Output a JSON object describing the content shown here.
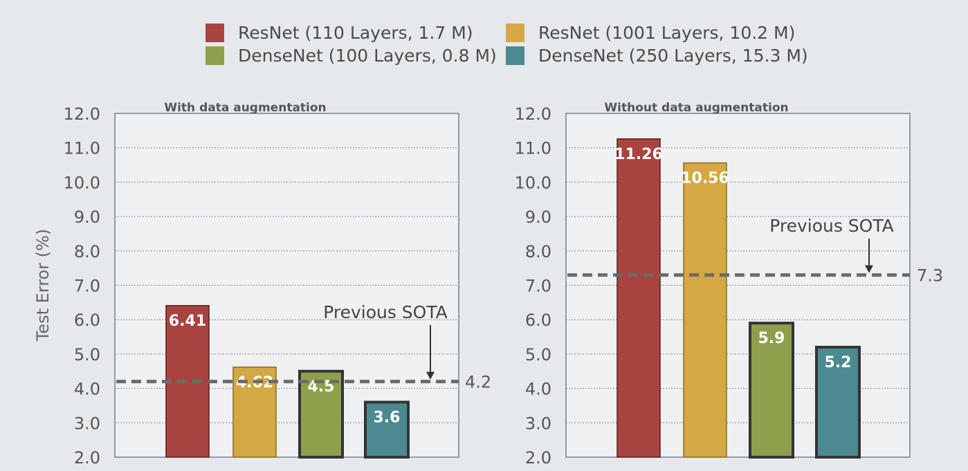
{
  "chart_data": {
    "type": "bar",
    "ylabel": "Test Error (%)",
    "ylim": [
      2.0,
      12.0
    ],
    "yticks": [
      "12.0",
      "11.0",
      "10.0",
      "9.0",
      "8.0",
      "7.0",
      "6.0",
      "5.0",
      "4.0",
      "3.0",
      "2.0"
    ],
    "grid": true,
    "legend_position": "top",
    "series": [
      {
        "name": "ResNet (110 Layers, 1.7 M)",
        "color": "#a8433f",
        "border": "#5a1f1c"
      },
      {
        "name": "ResNet (1001 Layers, 10.2 M)",
        "color": "#d4a842",
        "border": "#8a6a20"
      },
      {
        "name": "DenseNet (100 Layers, 0.8 M)",
        "color": "#8fa04c",
        "border": "#333333"
      },
      {
        "name": "DenseNet (250 Layers, 15.3 M)",
        "color": "#4b8a8f",
        "border": "#333333"
      }
    ],
    "panels": [
      {
        "title": "With data augmentation",
        "values": [
          6.41,
          4.62,
          4.5,
          3.6
        ],
        "labels": [
          "6.41",
          "4.62",
          "4.5",
          "3.6"
        ],
        "sota": {
          "label": "Previous SOTA",
          "value": 4.2,
          "value_label": "4.2"
        }
      },
      {
        "title": "Without data augmentation",
        "values": [
          11.26,
          10.56,
          5.9,
          5.2
        ],
        "labels": [
          "11.26",
          "10.56",
          "5.9",
          "5.2"
        ],
        "sota": {
          "label": "Previous SOTA",
          "value": 7.3,
          "value_label": "7.3"
        }
      }
    ]
  }
}
